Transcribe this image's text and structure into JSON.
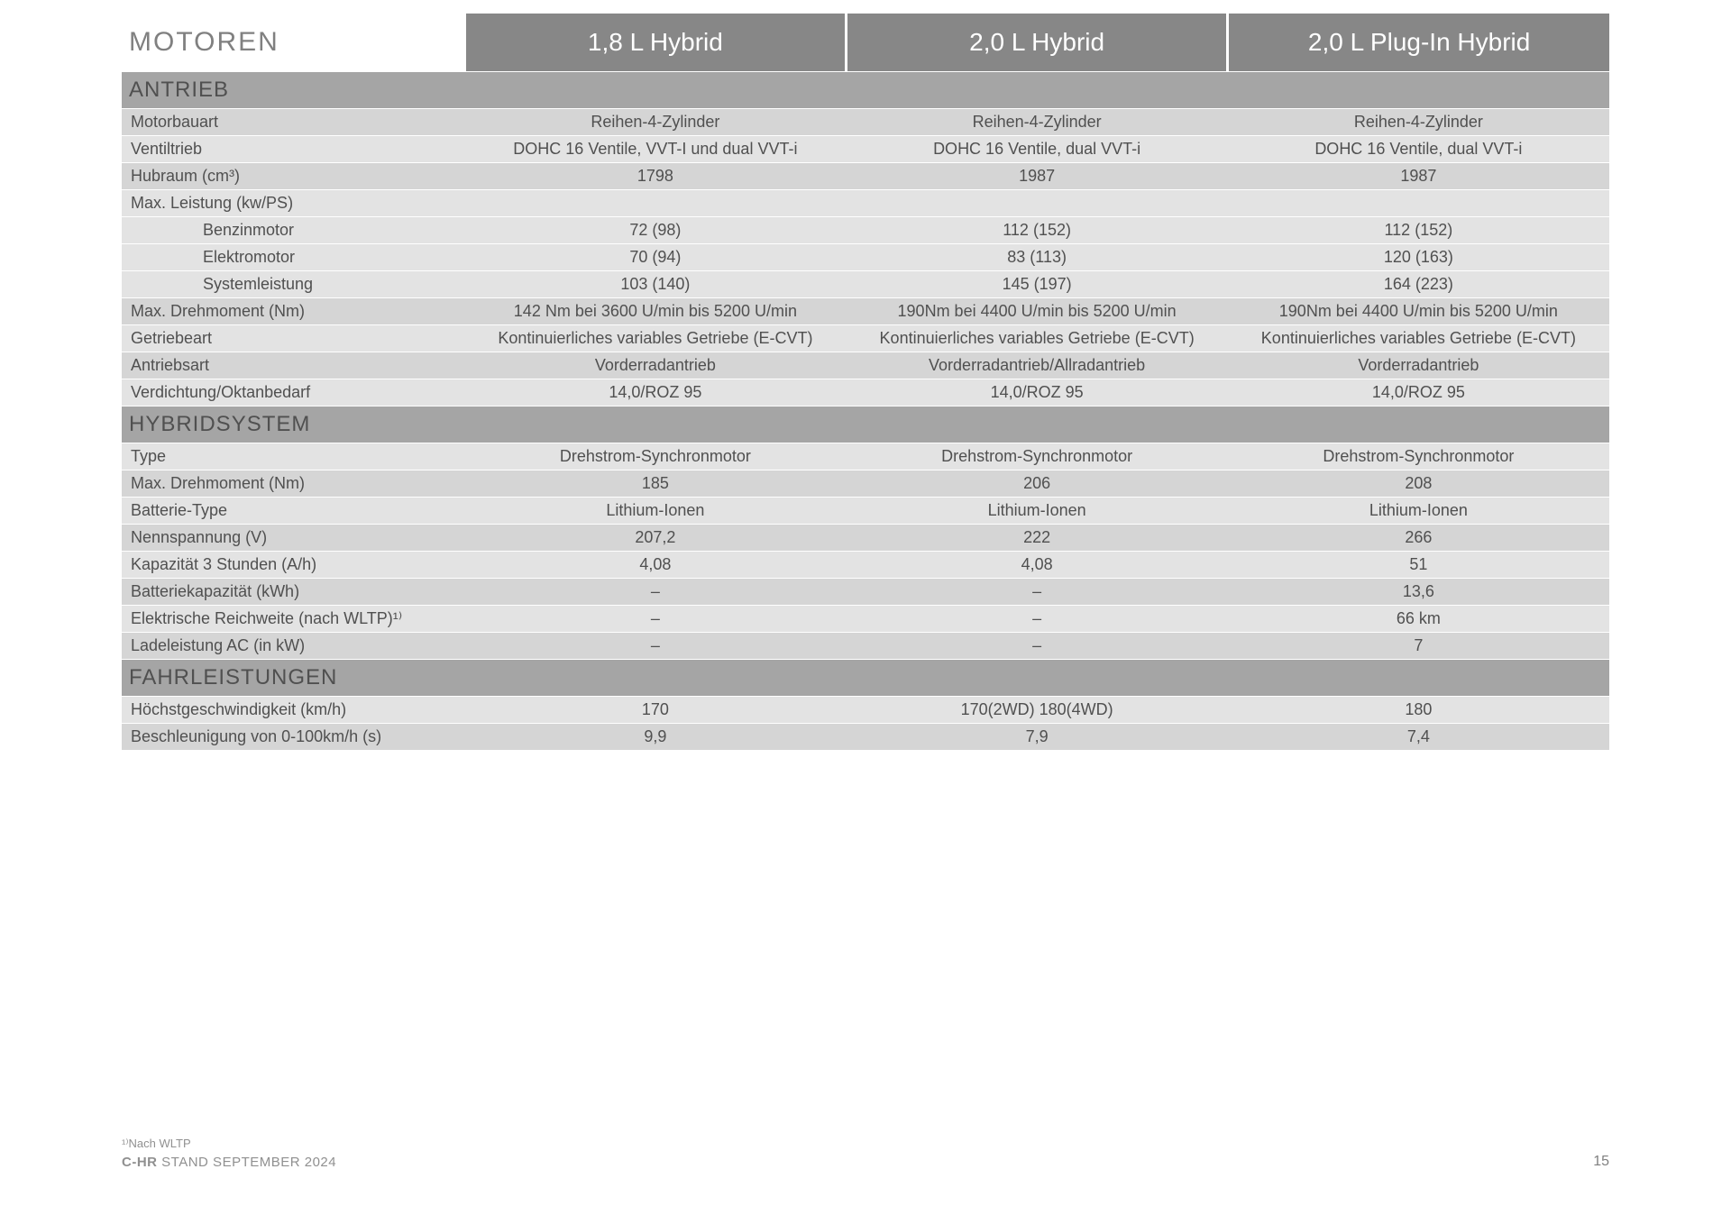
{
  "colors": {
    "header_bg": "#878787",
    "section_bg": "#a5a5a5",
    "row_light": "#e3e3e3",
    "row_dark": "#d5d5d5",
    "text": "#505050",
    "header_text": "#ffffff",
    "main_header_text": "#808080"
  },
  "table": {
    "main_header": "MOTOREN",
    "variants": [
      "1,8 L Hybrid",
      "2,0 L Hybrid",
      "2,0 L Plug-In Hybrid"
    ],
    "sections": [
      {
        "title": "ANTRIEB",
        "rows": [
          {
            "label": "Motorbauart",
            "values": [
              "Reihen-4-Zylinder",
              "Reihen-4-Zylinder",
              "Reihen-4-Zylinder"
            ],
            "shade": "dark"
          },
          {
            "label": "Ventiltrieb",
            "values": [
              "DOHC 16 Ventile, VVT-I und dual VVT-i",
              "DOHC 16 Ventile, dual VVT-i",
              "DOHC 16 Ventile, dual VVT-i"
            ],
            "shade": "light"
          },
          {
            "label": "Hubraum (cm³)",
            "values": [
              "1798",
              "1987",
              "1987"
            ],
            "shade": "dark"
          },
          {
            "label": "Max. Leistung (kw/PS)",
            "values": [
              "",
              "",
              ""
            ],
            "shade": "light"
          },
          {
            "label": "Benzinmotor",
            "indent": true,
            "values": [
              "72 (98)",
              "112 (152)",
              "112 (152)"
            ],
            "shade": "light"
          },
          {
            "label": "Elektromotor",
            "indent": true,
            "values": [
              "70 (94)",
              "83 (113)",
              "120 (163)"
            ],
            "shade": "light"
          },
          {
            "label": "Systemleistung",
            "indent": true,
            "values": [
              "103 (140)",
              "145 (197)",
              "164 (223)"
            ],
            "shade": "light"
          },
          {
            "label": "Max. Drehmoment (Nm)",
            "values": [
              "142 Nm bei 3600 U/min bis 5200 U/min",
              "190Nm bei 4400 U/min bis 5200 U/min",
              "190Nm bei 4400 U/min bis 5200 U/min"
            ],
            "shade": "dark"
          },
          {
            "label": "Getriebeart",
            "values": [
              "Kontinuierliches variables Getriebe (E-CVT)",
              "Kontinuierliches variables Getriebe (E-CVT)",
              "Kontinuierliches variables Getriebe (E-CVT)"
            ],
            "shade": "light"
          },
          {
            "label": "Antriebsart",
            "values": [
              "Vorderradantrieb",
              "Vorderradantrieb/Allradantrieb",
              "Vorderradantrieb"
            ],
            "shade": "dark"
          },
          {
            "label": "Verdichtung/Oktanbedarf",
            "values": [
              "14,0/ROZ 95",
              "14,0/ROZ 95",
              "14,0/ROZ 95"
            ],
            "shade": "light"
          }
        ]
      },
      {
        "title": "HYBRIDSYSTEM",
        "rows": [
          {
            "label": "Type",
            "values": [
              "Drehstrom-Synchronmotor",
              "Drehstrom-Synchronmotor",
              "Drehstrom-Synchronmotor"
            ],
            "shade": "light"
          },
          {
            "label": "Max. Drehmoment (Nm)",
            "values": [
              "185",
              "206",
              "208"
            ],
            "shade": "dark"
          },
          {
            "label": "Batterie-Type",
            "values": [
              "Lithium-Ionen",
              "Lithium-Ionen",
              "Lithium-Ionen"
            ],
            "shade": "light"
          },
          {
            "label": "Nennspannung (V)",
            "values": [
              "207,2",
              "222",
              "266"
            ],
            "shade": "dark"
          },
          {
            "label": "Kapazität 3 Stunden (A/h)",
            "values": [
              "4,08",
              "4,08",
              "51"
            ],
            "shade": "light"
          },
          {
            "label": "Batteriekapazität (kWh)",
            "values": [
              "–",
              "–",
              "13,6"
            ],
            "shade": "dark"
          },
          {
            "label": "Elektrische Reichweite (nach WLTP)¹⁾",
            "values": [
              "–",
              "–",
              "66 km"
            ],
            "shade": "light"
          },
          {
            "label": "Ladeleistung AC (in kW)",
            "values": [
              "–",
              "–",
              "7"
            ],
            "shade": "dark"
          }
        ]
      },
      {
        "title": "FAHRLEISTUNGEN",
        "rows": [
          {
            "label": "Höchstgeschwindigkeit (km/h)",
            "values": [
              "170",
              "170(2WD) 180(4WD)",
              "180"
            ],
            "shade": "light"
          },
          {
            "label": "Beschleunigung von 0-100km/h (s)",
            "values": [
              "9,9",
              "7,9",
              "7,4"
            ],
            "shade": "dark"
          }
        ]
      }
    ]
  },
  "footer": {
    "note": "¹⁾Nach WLTP",
    "title_bold": "C-HR",
    "title_rest": " STAND SEPTEMBER 2024",
    "page": "15"
  }
}
